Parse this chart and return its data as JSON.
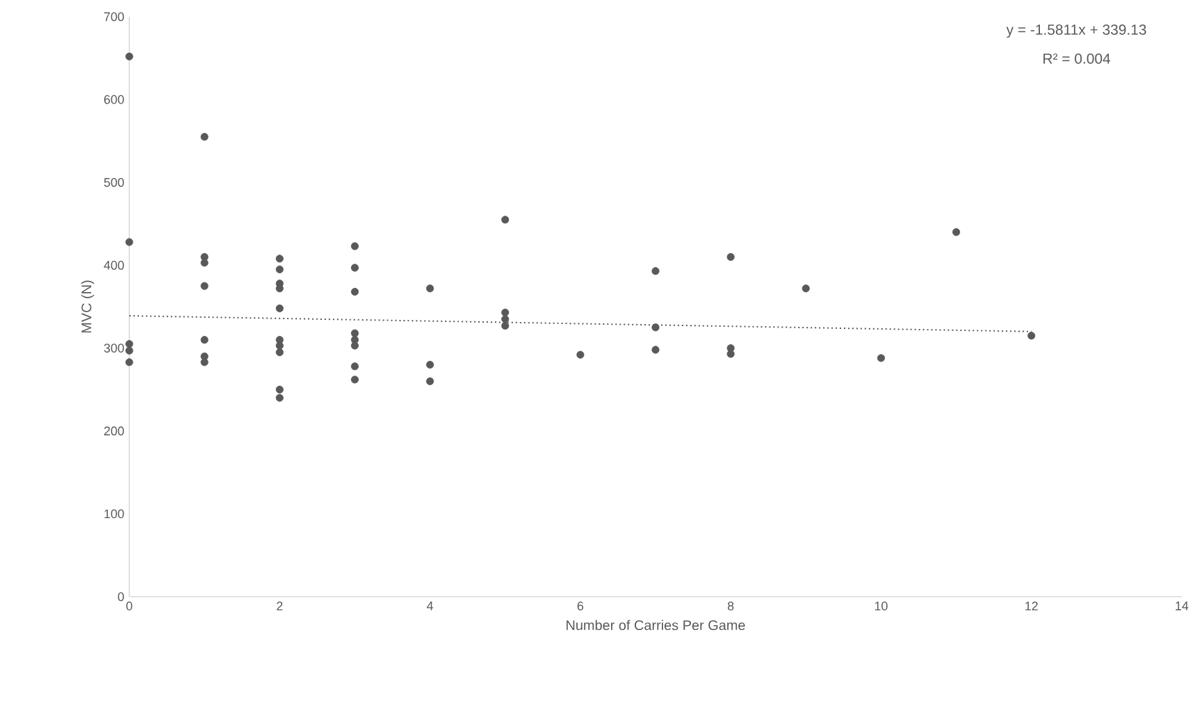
{
  "chart_data": {
    "type": "scatter",
    "xlabel": "Number of Carries Per Game",
    "ylabel": "MVC (N)",
    "xlim": [
      0,
      14
    ],
    "xticks": [
      0,
      2,
      4,
      6,
      8,
      10,
      12,
      14
    ],
    "ylim": [
      0,
      700
    ],
    "yticks": [
      0,
      100,
      200,
      300,
      400,
      500,
      600,
      700
    ],
    "grid": false,
    "annotations": [
      "y = -1.5811x + 339.13",
      "R² = 0.004"
    ],
    "series": [
      {
        "color": "#595959",
        "marker": "circle",
        "x": [
          0,
          0,
          0,
          0,
          0,
          1,
          1,
          1,
          1,
          1,
          1,
          1,
          2,
          2,
          2,
          2,
          2,
          2,
          2,
          2,
          2,
          2,
          3,
          3,
          3,
          3,
          3,
          3,
          3,
          3,
          4,
          4,
          4,
          5,
          5,
          5,
          5,
          6,
          7,
          7,
          7,
          8,
          8,
          8,
          9,
          10,
          11,
          12
        ],
        "values": [
          652,
          428,
          305,
          297,
          283,
          555,
          410,
          403,
          375,
          310,
          290,
          283,
          408,
          395,
          378,
          372,
          348,
          310,
          303,
          295,
          250,
          240,
          423,
          397,
          368,
          318,
          310,
          303,
          278,
          262,
          372,
          280,
          260,
          455,
          343,
          335,
          327,
          292,
          393,
          325,
          298,
          410,
          300,
          293,
          372,
          288,
          440,
          315
        ]
      },
      {
        "type": "line",
        "color": "#595959",
        "line_style": "dotted",
        "marker": "none",
        "x": [
          0,
          12
        ],
        "values": [
          339,
          320
        ]
      }
    ]
  }
}
